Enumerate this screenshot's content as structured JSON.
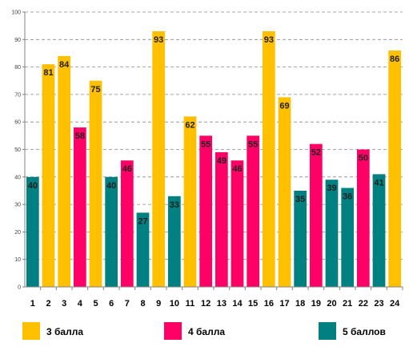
{
  "chart_data": {
    "type": "bar",
    "title": "",
    "xlabel": "",
    "ylabel": "",
    "ylim": [
      0,
      100
    ],
    "yticks": [
      0,
      10,
      20,
      30,
      40,
      50,
      60,
      70,
      80,
      90,
      100
    ],
    "grid": true,
    "legend_position": "bottom",
    "categories": [
      "1",
      "2",
      "3",
      "4",
      "5",
      "6",
      "7",
      "8",
      "9",
      "10",
      "11",
      "12",
      "13",
      "14",
      "15",
      "16",
      "17",
      "18",
      "19",
      "20",
      "21",
      "22",
      "23",
      "24"
    ],
    "values": [
      40,
      81,
      84,
      58,
      75,
      40,
      46,
      27,
      93,
      33,
      62,
      55,
      49,
      46,
      55,
      93,
      69,
      35,
      52,
      39,
      36,
      50,
      41,
      86
    ],
    "groups": [
      "5",
      "3",
      "3",
      "4",
      "3",
      "5",
      "4",
      "5",
      "3",
      "5",
      "3",
      "4",
      "4",
      "4",
      "4",
      "3",
      "3",
      "5",
      "4",
      "5",
      "5",
      "4",
      "5",
      "3"
    ],
    "series": [
      {
        "key": "3",
        "name": "3 балла",
        "color": "#FFC000"
      },
      {
        "key": "4",
        "name": "4 балла",
        "color": "#FF0066"
      },
      {
        "key": "5",
        "name": "5 баллов",
        "color": "#008080"
      }
    ]
  }
}
